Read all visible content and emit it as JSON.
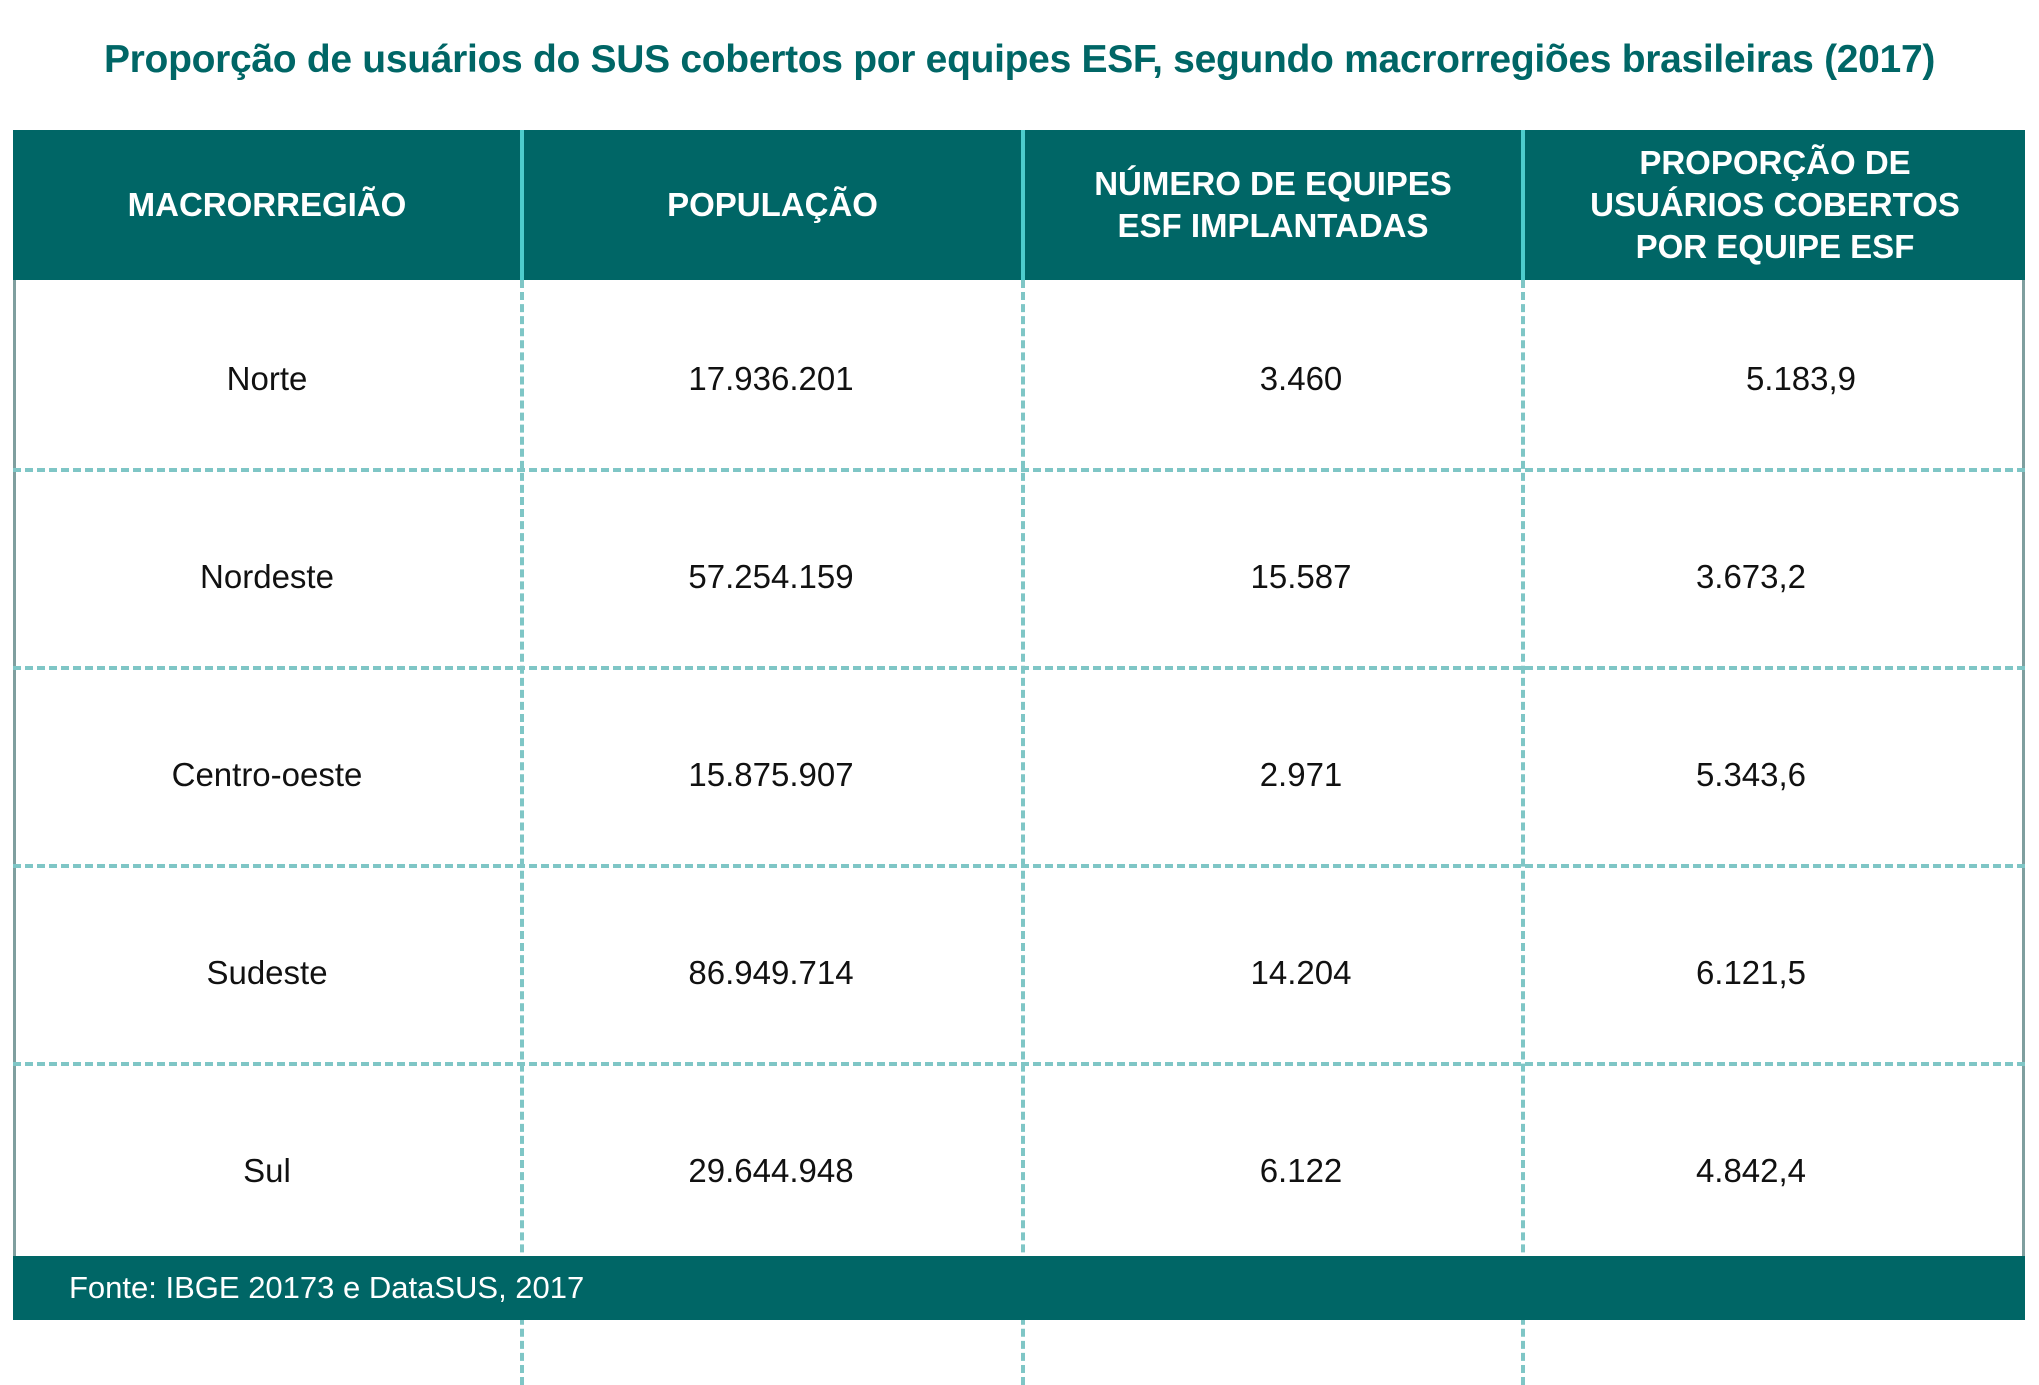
{
  "title": "Proporção de usuários do SUS cobertos por equipes ESF, segundo macrorregiões brasileiras (2017)",
  "table": {
    "headers": [
      "MACRORREGIÃO",
      "POPULAÇÃO",
      "NÚMERO DE EQUIPES ESF IMPLANTADAS",
      "PROPORÇÃO DE USUÁRIOS COBERTOS POR EQUIPE ESF"
    ],
    "rows": [
      [
        "Norte",
        "17.936.201",
        "3.460",
        "5.183,9"
      ],
      [
        "Nordeste",
        "57.254.159",
        "15.587",
        "3.673,2"
      ],
      [
        "Centro-oeste",
        "15.875.907",
        "2.971",
        "5.343,6"
      ],
      [
        "Sudeste",
        "86.949.714",
        "14.204",
        "6.121,5"
      ],
      [
        "Sul",
        "29.644.948",
        "6.122",
        "4.842,4"
      ]
    ]
  },
  "footer": {
    "source": "Fonte: IBGE 20173 e DataSUS, 2017"
  },
  "colors": {
    "accent": "#006666",
    "header_separator": "#4ecccc",
    "grid_dash": "#7fc6c6"
  }
}
